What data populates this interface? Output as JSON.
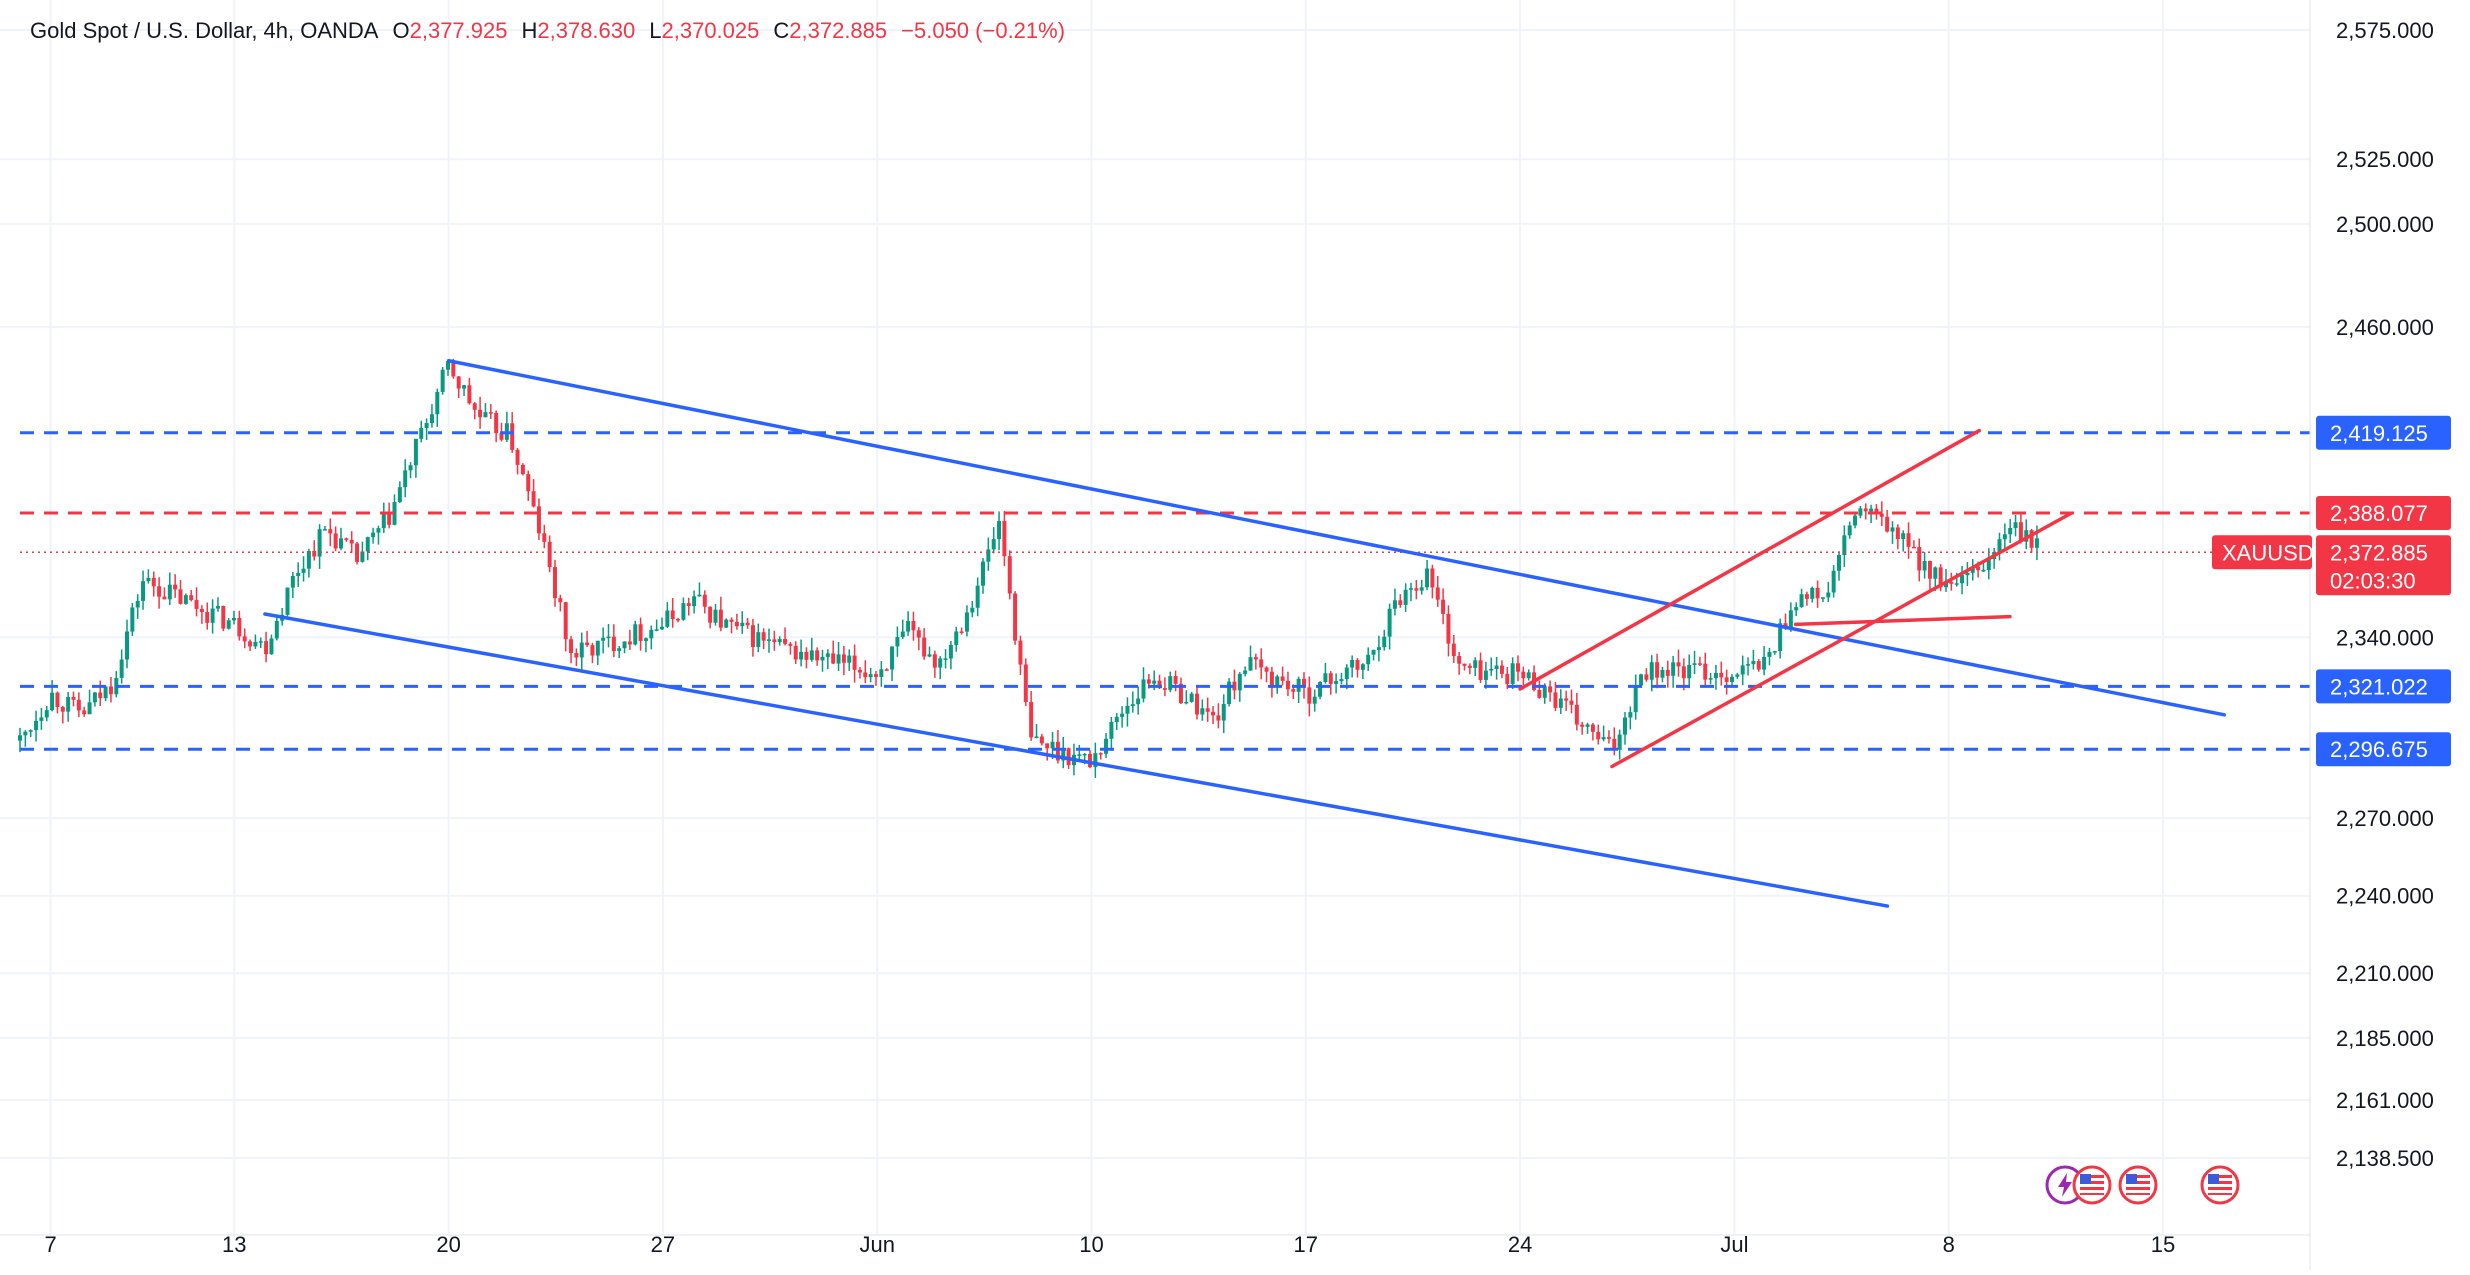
{
  "legend": {
    "symbol": "Gold Spot / U.S. Dollar, 4h, OANDA",
    "open_key": "O",
    "open": "2,377.925",
    "high_key": "H",
    "high": "2,378.630",
    "low_key": "L",
    "low": "2,370.025",
    "close_key": "C",
    "close": "2,372.885",
    "change": "−5.050 (−0.21%)"
  },
  "colors": {
    "up": "#089981",
    "down": "#f23645",
    "blue_line": "#2962ff",
    "red_line": "#f23645",
    "grid": "#f0f3fa",
    "axis_text": "#131722"
  },
  "chart_data": {
    "type": "candlestick",
    "symbol": "XAUUSD",
    "timeframe": "4h",
    "y_axis_labels": [
      {
        "value": 2575,
        "label": "2,575.000"
      },
      {
        "value": 2525,
        "label": "2,525.000"
      },
      {
        "value": 2500,
        "label": "2,500.000"
      },
      {
        "value": 2460,
        "label": "2,460.000"
      },
      {
        "value": 2340,
        "label": "2,340.000"
      },
      {
        "value": 2270,
        "label": "2,270.000"
      },
      {
        "value": 2240,
        "label": "2,240.000"
      },
      {
        "value": 2210,
        "label": "2,210.000"
      },
      {
        "value": 2185,
        "label": "2,185.000"
      },
      {
        "value": 2161,
        "label": "2,161.000"
      },
      {
        "value": 2138.5,
        "label": "2,138.500"
      }
    ],
    "x_axis_labels": [
      {
        "date": "2024-05-07",
        "label": "7"
      },
      {
        "date": "2024-05-13",
        "label": "13"
      },
      {
        "date": "2024-05-20",
        "label": "20"
      },
      {
        "date": "2024-05-27",
        "label": "27"
      },
      {
        "date": "2024-06-03",
        "label": "Jun"
      },
      {
        "date": "2024-06-10",
        "label": "10"
      },
      {
        "date": "2024-06-17",
        "label": "17"
      },
      {
        "date": "2024-06-24",
        "label": "24"
      },
      {
        "date": "2024-07-01",
        "label": "Jul"
      },
      {
        "date": "2024-07-08",
        "label": "8"
      },
      {
        "date": "2024-07-15",
        "label": "15"
      }
    ],
    "price_path": [
      {
        "date": "2024-05-06",
        "price": 2300
      },
      {
        "date": "2024-05-07",
        "price": 2318
      },
      {
        "date": "2024-05-08",
        "price": 2310
      },
      {
        "date": "2024-05-09",
        "price": 2322
      },
      {
        "date": "2024-05-10",
        "price": 2362
      },
      {
        "date": "2024-05-13",
        "price": 2345
      },
      {
        "date": "2024-05-14",
        "price": 2336
      },
      {
        "date": "2024-05-15",
        "price": 2365
      },
      {
        "date": "2024-05-16",
        "price": 2382
      },
      {
        "date": "2024-05-17",
        "price": 2370
      },
      {
        "date": "2024-05-18",
        "price": 2385
      },
      {
        "date": "2024-05-20",
        "price": 2445
      },
      {
        "date": "2024-05-21",
        "price": 2425
      },
      {
        "date": "2024-05-22",
        "price": 2418
      },
      {
        "date": "2024-05-23",
        "price": 2380
      },
      {
        "date": "2024-05-24",
        "price": 2333
      },
      {
        "date": "2024-05-27",
        "price": 2345
      },
      {
        "date": "2024-05-28",
        "price": 2355
      },
      {
        "date": "2024-05-29",
        "price": 2345
      },
      {
        "date": "2024-05-30",
        "price": 2340
      },
      {
        "date": "2024-05-31",
        "price": 2335
      },
      {
        "date": "2024-06-03",
        "price": 2326
      },
      {
        "date": "2024-06-04",
        "price": 2342
      },
      {
        "date": "2024-06-05",
        "price": 2330
      },
      {
        "date": "2024-06-06",
        "price": 2352
      },
      {
        "date": "2024-06-07",
        "price": 2385
      },
      {
        "date": "2024-06-08",
        "price": 2300
      },
      {
        "date": "2024-06-10",
        "price": 2292
      },
      {
        "date": "2024-06-11",
        "price": 2312
      },
      {
        "date": "2024-06-12",
        "price": 2325
      },
      {
        "date": "2024-06-13",
        "price": 2318
      },
      {
        "date": "2024-06-14",
        "price": 2308
      },
      {
        "date": "2024-06-15",
        "price": 2330
      },
      {
        "date": "2024-06-17",
        "price": 2318
      },
      {
        "date": "2024-06-18",
        "price": 2325
      },
      {
        "date": "2024-06-19",
        "price": 2330
      },
      {
        "date": "2024-06-20",
        "price": 2355
      },
      {
        "date": "2024-06-21",
        "price": 2365
      },
      {
        "date": "2024-06-22",
        "price": 2328
      },
      {
        "date": "2024-06-24",
        "price": 2326
      },
      {
        "date": "2024-06-25",
        "price": 2318
      },
      {
        "date": "2024-06-26",
        "price": 2306
      },
      {
        "date": "2024-06-27",
        "price": 2296
      },
      {
        "date": "2024-06-28",
        "price": 2328
      },
      {
        "date": "2024-07-01",
        "price": 2326
      },
      {
        "date": "2024-07-02",
        "price": 2330
      },
      {
        "date": "2024-07-03",
        "price": 2355
      },
      {
        "date": "2024-07-04",
        "price": 2356
      },
      {
        "date": "2024-07-05",
        "price": 2390
      },
      {
        "date": "2024-07-06",
        "price": 2383
      },
      {
        "date": "2024-07-08",
        "price": 2358
      },
      {
        "date": "2024-07-09",
        "price": 2365
      },
      {
        "date": "2024-07-10",
        "price": 2383
      },
      {
        "date": "2024-07-11",
        "price": 2373
      }
    ],
    "horizontal_levels": [
      {
        "price": 2419.125,
        "label": "2,419.125",
        "color": "#2962ff",
        "style": "dashed"
      },
      {
        "price": 2388.077,
        "label": "2,388.077",
        "color": "#f23645",
        "style": "dashed"
      },
      {
        "price": 2321.022,
        "label": "2,321.022",
        "color": "#2962ff",
        "style": "dashed"
      },
      {
        "price": 2296.675,
        "label": "2,296.675",
        "color": "#2962ff",
        "style": "dashed"
      }
    ],
    "trendlines": [
      {
        "color": "#2962ff",
        "from": {
          "date": "2024-05-20",
          "price": 2447
        },
        "to": {
          "date": "2024-07-17",
          "price": 2310
        }
      },
      {
        "color": "#2962ff",
        "from": {
          "date": "2024-05-14",
          "price": 2349
        },
        "to": {
          "date": "2024-07-06",
          "price": 2236
        }
      },
      {
        "color": "#f23645",
        "from": {
          "date": "2024-06-24",
          "price": 2320
        },
        "to": {
          "date": "2024-07-09",
          "price": 2420
        }
      },
      {
        "color": "#f23645",
        "from": {
          "date": "2024-06-27",
          "price": 2290
        },
        "to": {
          "date": "2024-07-12",
          "price": 2388
        }
      },
      {
        "color": "#f23645",
        "from": {
          "date": "2024-07-03",
          "price": 2345
        },
        "to": {
          "date": "2024-07-10",
          "price": 2348
        }
      }
    ],
    "last_price": {
      "price": 2372.885,
      "label": "2,372.885",
      "symbol": "XAUUSD",
      "countdown": "02:03:30"
    },
    "grid": true
  }
}
